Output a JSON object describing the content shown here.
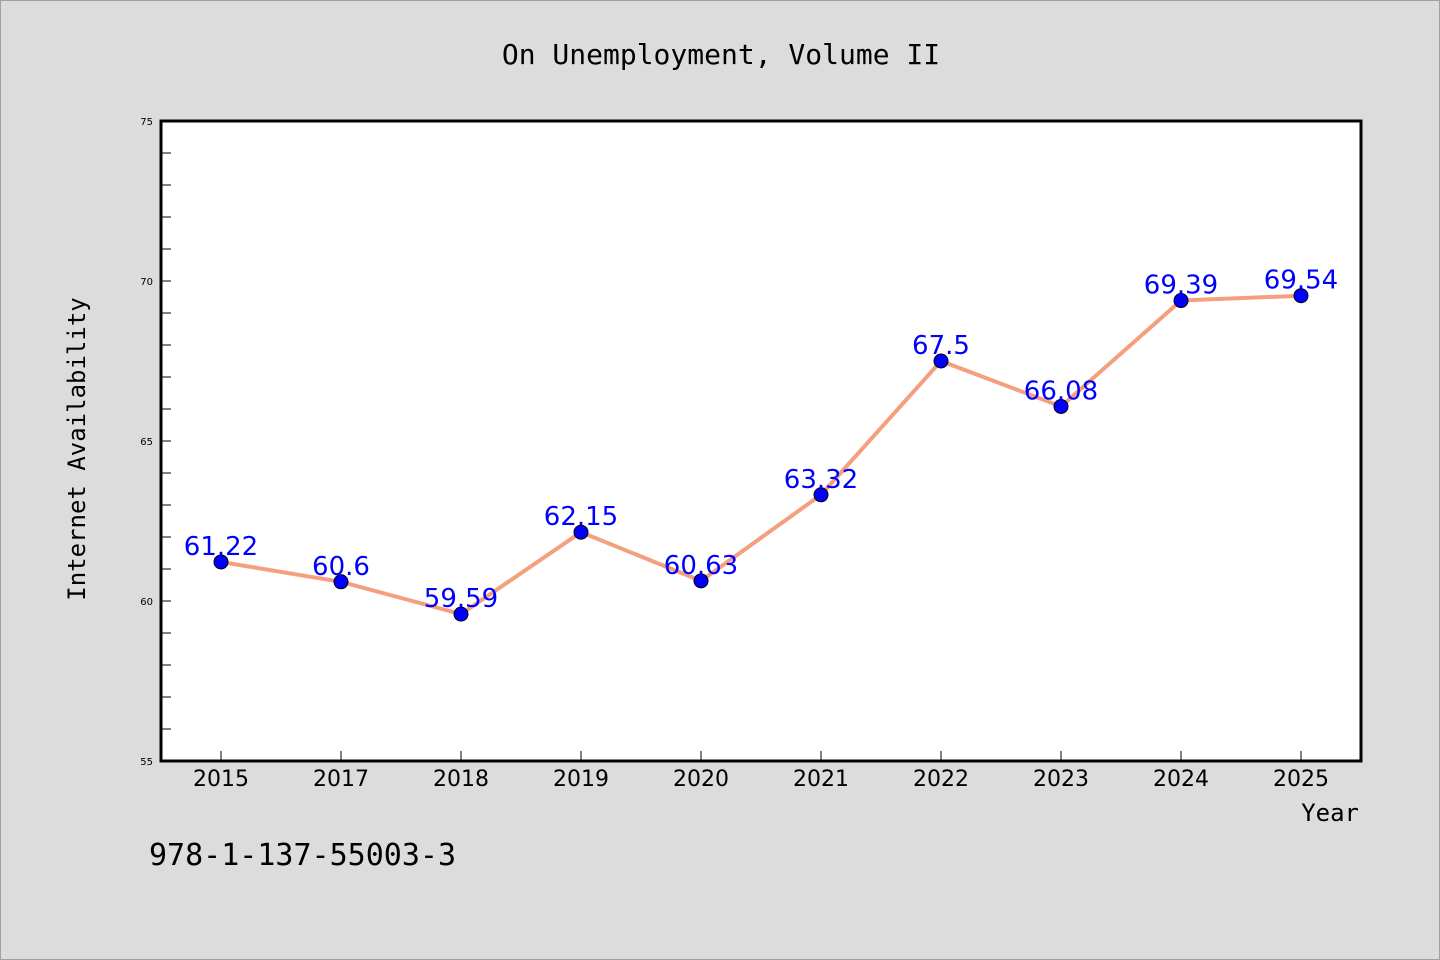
{
  "chart_data": {
    "type": "line",
    "title": "On Unemployment, Volume II",
    "xlabel": "Year",
    "ylabel": "Internet Availability",
    "categories": [
      "2015",
      "2017",
      "2018",
      "2019",
      "2020",
      "2021",
      "2022",
      "2023",
      "2024",
      "2025"
    ],
    "series": [
      {
        "values": [
          61.22,
          60.6,
          59.59,
          62.15,
          60.63,
          63.32,
          67.5,
          66.08,
          69.39,
          69.54
        ],
        "data_labels": [
          "61.22",
          "60.6",
          "59.59",
          "62.15",
          "60.63",
          "63.32",
          "67.5",
          "66.08",
          "69.39",
          "69.54"
        ]
      }
    ],
    "ylim": [
      55,
      75
    ],
    "yticks": [
      55,
      60,
      65,
      70,
      75
    ],
    "grid": false,
    "colors": {
      "line": "#f4a07e",
      "marker": "#0000ff",
      "data_label": "#0000ff",
      "background": "#dcdcdc",
      "plot_background": "#ffffff"
    }
  },
  "footer": {
    "isbn": "978-1-137-55003-3"
  }
}
